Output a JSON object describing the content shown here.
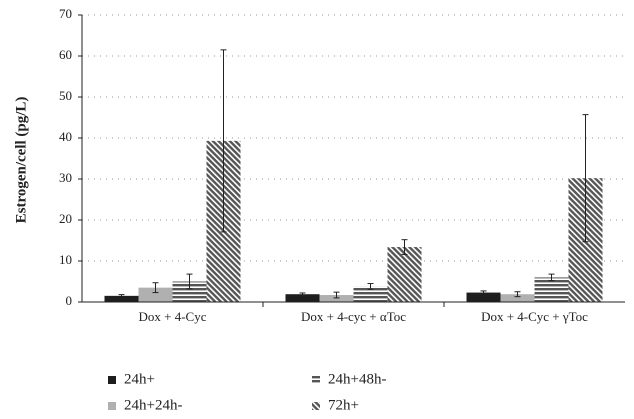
{
  "chart_data": {
    "type": "bar",
    "y_label": "Estrogen/cell (pg/L)",
    "categories": [
      "Dox + 4-Cyc",
      "Dox + 4-cyc + αToc",
      "Dox + 4-Cyc + γToc"
    ],
    "series": [
      {
        "name": "24h+",
        "color": "#1e1e1e",
        "hatch": "none",
        "values": [
          1.5,
          1.9,
          2.3
        ],
        "errors": [
          0.3,
          0.3,
          0.4
        ]
      },
      {
        "name": "24h+24h-",
        "color": "#b0b0b0",
        "hatch": "none",
        "values": [
          3.5,
          1.7,
          1.9
        ],
        "errors": [
          1.2,
          0.7,
          0.6
        ]
      },
      {
        "name": "24h+48h-",
        "color": "#555555",
        "hatch": "horizontal",
        "values": [
          5,
          3.8,
          6
        ],
        "errors": [
          1.8,
          0.7,
          0.8
        ]
      },
      {
        "name": "72h+",
        "color": "#555555",
        "hatch": "diagonal",
        "values": [
          39.3,
          13.4,
          30.2
        ],
        "errors": [
          22.2,
          1.8,
          15.5
        ]
      }
    ],
    "ylim": [
      0,
      70
    ],
    "yticks": [
      0,
      10,
      20,
      30,
      40,
      50,
      60,
      70
    ],
    "grid": true
  }
}
